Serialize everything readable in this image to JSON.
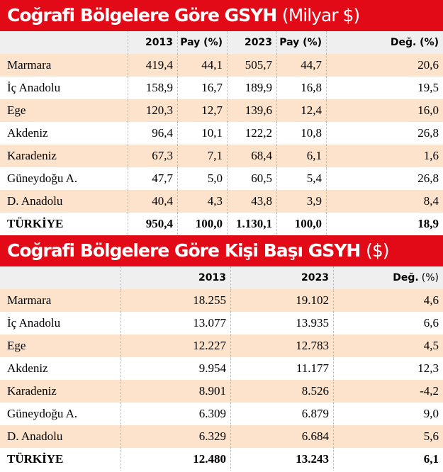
{
  "table1": {
    "title": "Coğrafi Bölgelere Göre GSYH",
    "title_unit": "(Milyar $)",
    "header": [
      "2013",
      "Pay (%)",
      "2023",
      "Pay (%)",
      "Değ. (%)"
    ],
    "rows": [
      [
        "Marmara",
        "419,4",
        "44,1",
        "505,7",
        "44,7",
        "20,6"
      ],
      [
        "İç Anadolu",
        "158,9",
        "16,7",
        "189,9",
        "16,8",
        "19,5"
      ],
      [
        "Ege",
        "120,3",
        "12,7",
        "139,6",
        "12,4",
        "16,0"
      ],
      [
        "Akdeniz",
        "96,4",
        "10,1",
        "122,2",
        "10,8",
        "26,8"
      ],
      [
        "Karadeniz",
        "67,3",
        "7,1",
        "68,4",
        "6,1",
        "1,6"
      ],
      [
        "Güneydoğu A.",
        "47,7",
        "5,0",
        "60,5",
        "5,4",
        "26,8"
      ],
      [
        "D. Anadolu",
        "40,4",
        "4,3",
        "43,8",
        "3,9",
        "8,4"
      ],
      [
        "TÜRKİYE",
        "950,4",
        "100,0",
        "1.130,1",
        "100,0",
        "18,9"
      ]
    ]
  },
  "table2": {
    "title": "Coğrafi Bölgelere Göre Kişi Başı GSYH",
    "title_unit": "($)",
    "header": [
      "2013",
      "2023"
    ],
    "header_change": [
      "Değ.",
      "(%)"
    ],
    "rows": [
      [
        "Marmara",
        "18.255",
        "19.102",
        "4,6"
      ],
      [
        "İç Anadolu",
        "13.077",
        "13.935",
        "6,6"
      ],
      [
        "Ege",
        "12.227",
        "12.783",
        "4,5"
      ],
      [
        "Akdeniz",
        "9.954",
        "11.177",
        "12,3"
      ],
      [
        "Karadeniz",
        "8.901",
        "8.526",
        "-4,2"
      ],
      [
        "Güneydoğu A.",
        "6.309",
        "6.879",
        "9,0"
      ],
      [
        "D. Anadolu",
        "6.329",
        "6.684",
        "5,6"
      ],
      [
        "TÜRKİYE",
        "12.480",
        "13.243",
        "6,1"
      ]
    ]
  }
}
